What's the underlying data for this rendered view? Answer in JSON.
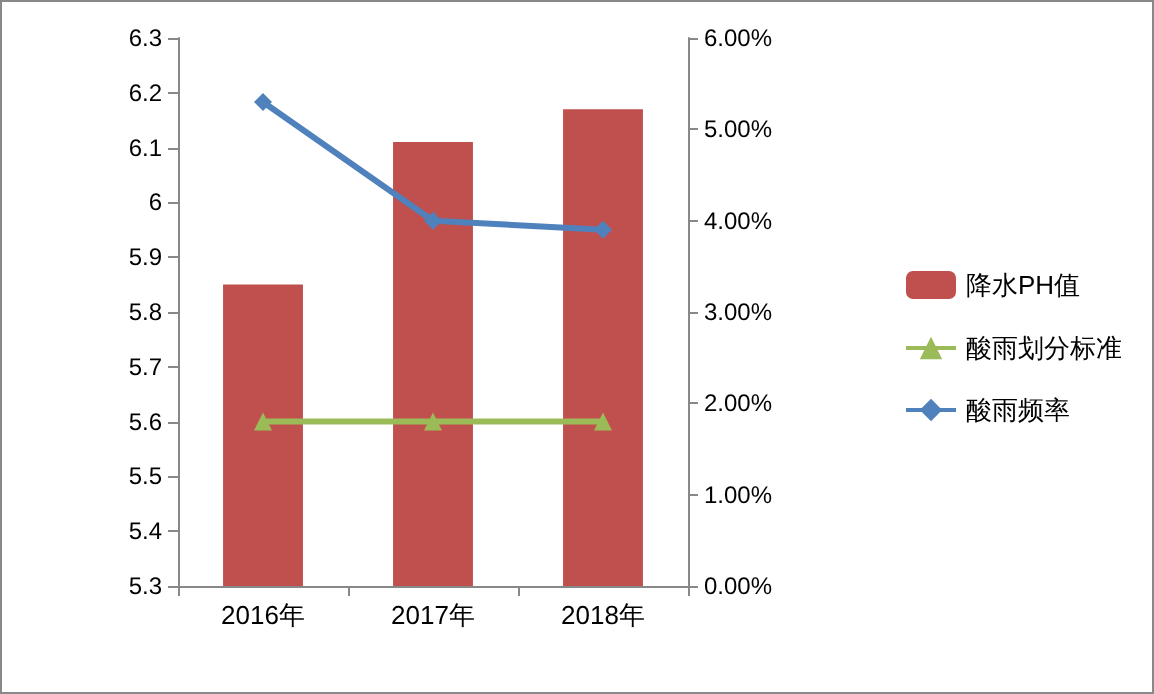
{
  "chart_data": {
    "type": "bar",
    "categories": [
      "2016年",
      "2017年",
      "2018年"
    ],
    "series": [
      {
        "name": "降水PH值",
        "color": "#c0504d",
        "values": [
          5.85,
          6.11,
          6.17
        ]
      },
      {
        "name": "酸雨划分标准",
        "type": "line",
        "color": "#9bbb59",
        "marker": "triangle",
        "values": [
          5.6,
          5.6,
          5.6
        ]
      },
      {
        "name": "酸雨频率",
        "type": "line",
        "color": "#4f81bd",
        "marker": "diamond",
        "axis": "y2",
        "values": [
          5.3,
          4.0,
          3.9
        ]
      }
    ],
    "ylim": [
      5.3,
      6.3
    ],
    "yticks": [
      5.3,
      5.4,
      5.5,
      5.6,
      5.7,
      5.8,
      5.9,
      6,
      6.1,
      6.2,
      6.3
    ],
    "y2lim": [
      0,
      6
    ],
    "y2ticks": [
      {
        "value": 0,
        "label": "0.00%"
      },
      {
        "value": 1,
        "label": "1.00%"
      },
      {
        "value": 2,
        "label": "2.00%"
      },
      {
        "value": 3,
        "label": "3.00%"
      },
      {
        "value": 4,
        "label": "4.00%"
      },
      {
        "value": 5,
        "label": "5.00%"
      },
      {
        "value": 6,
        "label": "6.00%"
      }
    ],
    "grid": false,
    "legend": "right"
  }
}
